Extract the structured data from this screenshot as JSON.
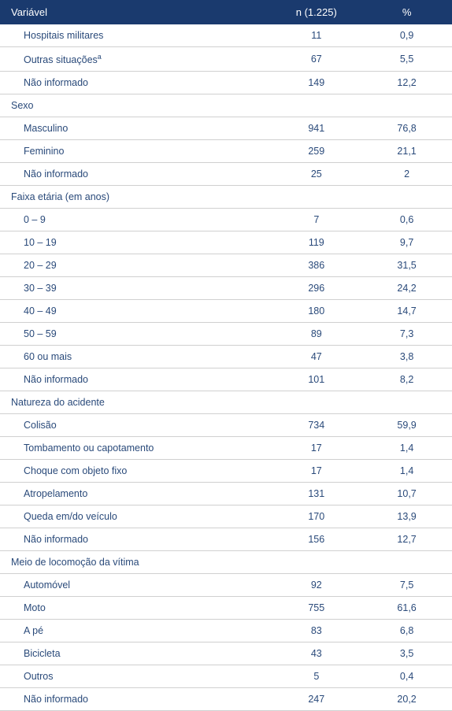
{
  "headers": {
    "col1": "Variável",
    "col2": "n (1.225)",
    "col3": "%"
  },
  "colors": {
    "header_bg": "#1a3a6e",
    "header_text": "#ffffff",
    "cell_text": "#2a4a7a",
    "border": "#d0d0d0"
  },
  "font": {
    "header_size": 13,
    "cell_size": 12.5
  },
  "sections": [
    {
      "title": null,
      "rows": [
        {
          "label": "Hospitais militares",
          "n": "11",
          "pct": "0,9"
        },
        {
          "label": "Outras situações",
          "sup": "a",
          "n": "67",
          "pct": "5,5"
        },
        {
          "label": "Não informado",
          "n": "149",
          "pct": "12,2"
        }
      ]
    },
    {
      "title": "Sexo",
      "rows": [
        {
          "label": "Masculino",
          "n": "941",
          "pct": "76,8"
        },
        {
          "label": "Feminino",
          "n": "259",
          "pct": "21,1"
        },
        {
          "label": "Não informado",
          "n": "25",
          "pct": "2"
        }
      ]
    },
    {
      "title": "Faixa etária (em anos)",
      "rows": [
        {
          "label": "0 – 9",
          "n": "7",
          "pct": "0,6"
        },
        {
          "label": "10 – 19",
          "n": "119",
          "pct": "9,7"
        },
        {
          "label": "20 – 29",
          "n": "386",
          "pct": "31,5"
        },
        {
          "label": "30 – 39",
          "n": "296",
          "pct": "24,2"
        },
        {
          "label": "40 – 49",
          "n": "180",
          "pct": "14,7"
        },
        {
          "label": "50 – 59",
          "n": "89",
          "pct": "7,3"
        },
        {
          "label": "60 ou mais",
          "n": "47",
          "pct": "3,8"
        },
        {
          "label": "Não informado",
          "n": "101",
          "pct": "8,2"
        }
      ]
    },
    {
      "title": "Natureza do acidente",
      "rows": [
        {
          "label": "Colisão",
          "n": "734",
          "pct": "59,9"
        },
        {
          "label": "Tombamento ou capotamento",
          "n": "17",
          "pct": "1,4"
        },
        {
          "label": "Choque com objeto fixo",
          "n": "17",
          "pct": "1,4"
        },
        {
          "label": "Atropelamento",
          "n": "131",
          "pct": "10,7"
        },
        {
          "label": "Queda em/do veículo",
          "n": "170",
          "pct": "13,9"
        },
        {
          "label": "Não informado",
          "n": "156",
          "pct": "12,7"
        }
      ]
    },
    {
      "title": "Meio de locomoção da vítima",
      "rows": [
        {
          "label": "Automóvel",
          "n": "92",
          "pct": "7,5"
        },
        {
          "label": "Moto",
          "n": "755",
          "pct": "61,6"
        },
        {
          "label": "A pé",
          "n": "83",
          "pct": "6,8"
        },
        {
          "label": "Bicicleta",
          "n": "43",
          "pct": "3,5"
        },
        {
          "label": "Outros",
          "n": "5",
          "pct": "0,4"
        },
        {
          "label": "Não informado",
          "n": "247",
          "pct": "20,2"
        }
      ]
    }
  ]
}
